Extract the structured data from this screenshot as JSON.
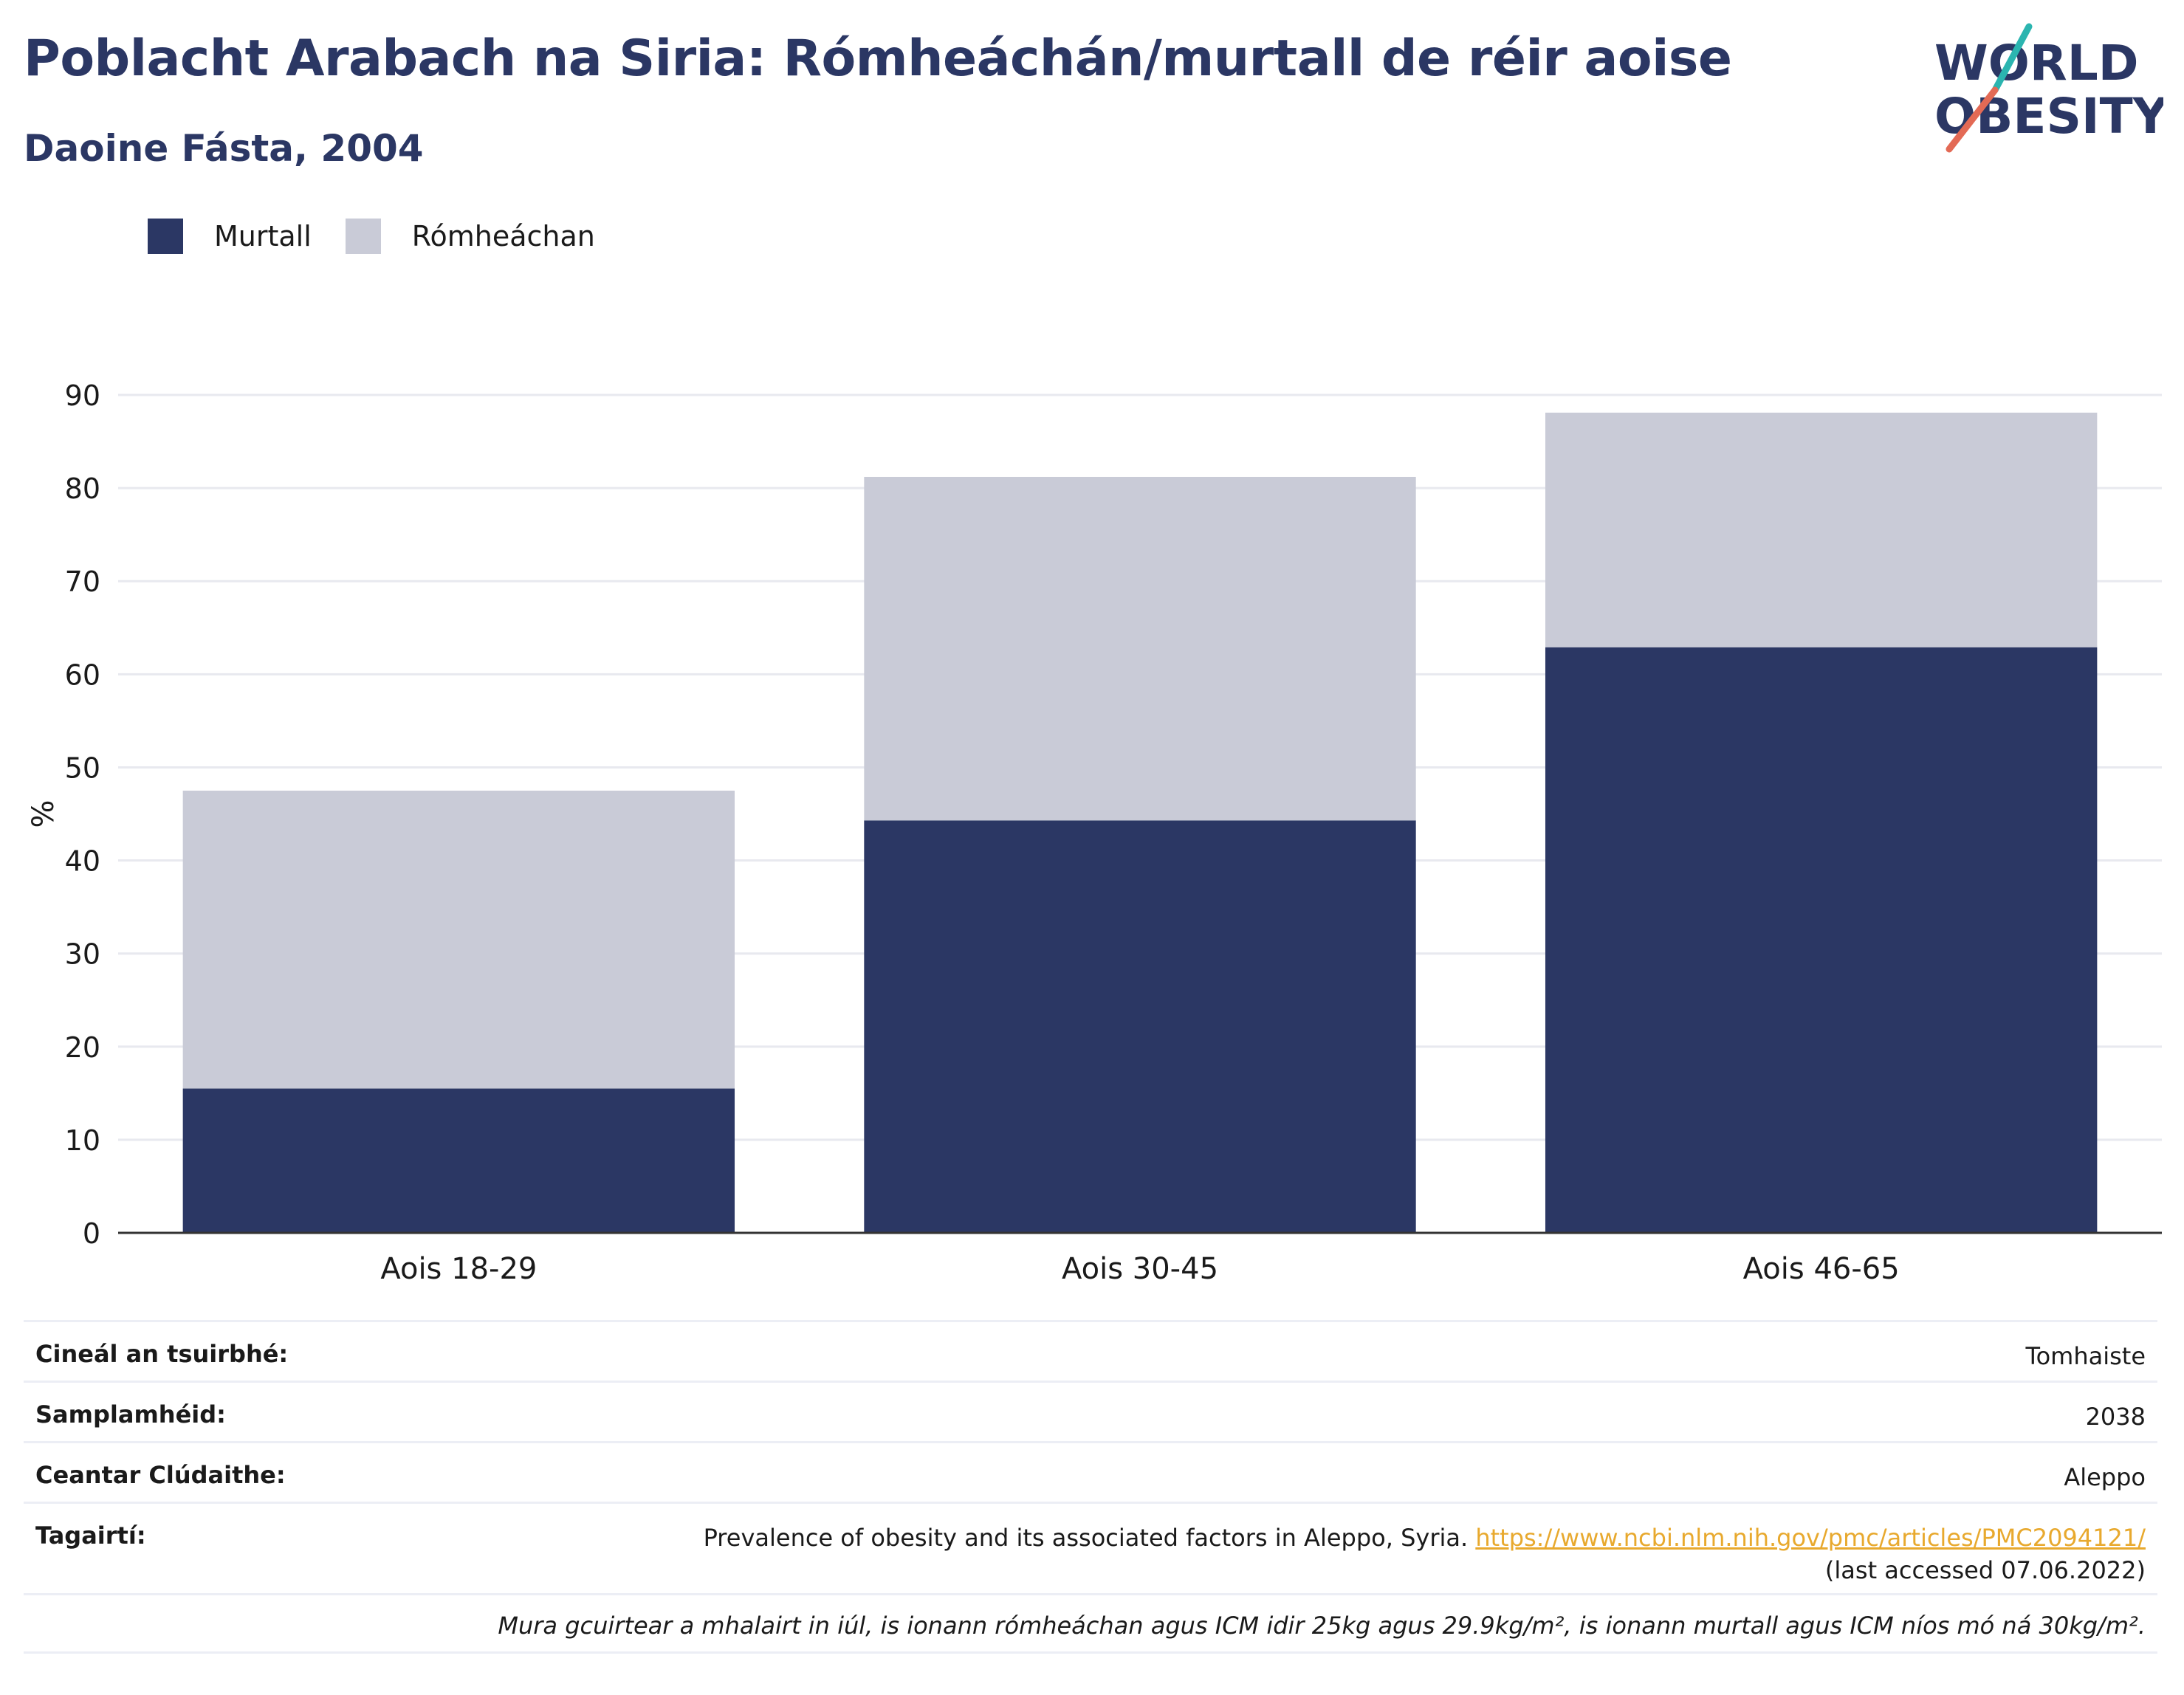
{
  "header": {
    "title": "Poblacht Arabach na Siria: Rómheáchán/murtall de réir aoise",
    "subtitle": "Daoine Fásta, 2004"
  },
  "logo": {
    "line1": "WORLD",
    "line2": "OBESITY",
    "accent_teal": "#2bb5b0",
    "accent_coral": "#e36a55"
  },
  "legend": [
    {
      "label": "Murtall",
      "color": "#2b3764"
    },
    {
      "label": "Rómheáchan",
      "color": "#c9cbd7"
    }
  ],
  "chart_data": {
    "type": "bar",
    "stacked": true,
    "categories": [
      "Aois 18-29",
      "Aois 30-45",
      "Aois 46-65"
    ],
    "series": [
      {
        "name": "Murtall",
        "values": [
          15.5,
          44.3,
          62.9
        ],
        "color": "#2b3764"
      },
      {
        "name": "Rómheáchan",
        "values": [
          32.0,
          36.9,
          25.2
        ],
        "color": "#c9cbd7"
      }
    ],
    "ylabel": "%",
    "ylim": [
      0,
      90
    ],
    "yticks": [
      0,
      10,
      20,
      30,
      40,
      50,
      60,
      70,
      80,
      90
    ],
    "grid": true,
    "legend_position": "top-left"
  },
  "meta": {
    "survey_type": {
      "label": "Cineál an tsuirbhé:",
      "value": "Tomhaiste"
    },
    "sample_size": {
      "label": "Samplamhéid:",
      "value": "2038"
    },
    "area": {
      "label": "Ceantar Clúdaithe:",
      "value": "Aleppo"
    },
    "references": {
      "label": "Tagairtí:",
      "text": "Prevalence of obesity and its associated factors in Aleppo, Syria. ",
      "link": "https://www.ncbi.nlm.nih.gov/pmc/articles/PMC2094121/",
      "suffix": " (last accessed 07.06.2022)"
    },
    "note": "Mura gcuirtear a mhalairt in iúl, is ionann rómheáchan agus ICM idir 25kg agus 29.9kg/m², is ionann murtall agus ICM níos mó ná 30kg/m²."
  }
}
